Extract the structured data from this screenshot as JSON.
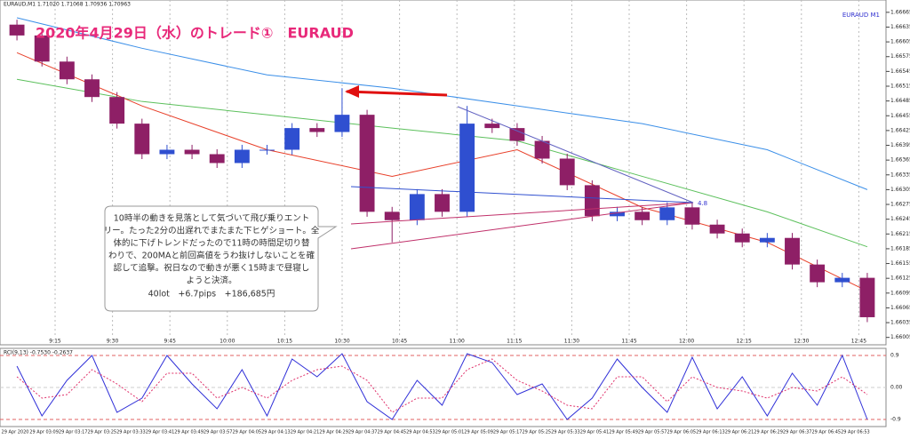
{
  "window": {
    "status": "EURAUD,M1  1.71020 1.71068 1.70936 1.70963",
    "symbol_label": "EURAUD M1"
  },
  "annotation": {
    "title": "2020年4月29日（水）のトレード①　EURAUD",
    "callout_lines": [
      "10時半の動きを見落として気づいて飛び乗りエント",
      "リー。たった2分の出遅れでまたまた下ヒゲショート。全",
      "体的に下げトレンドだったので11時の時間足切り替",
      "わりで、200MAと前回高値をうわ抜けしないことを確",
      "認して追撃。祝日なので動きが悪く15時まで昼寝し",
      "ようと決済。"
    ],
    "result": "40lot　+6.7pips　+186,685円",
    "marker": "4.8"
  },
  "chart_data": [
    {
      "type": "candlestick",
      "up_color": "#2f4fd0",
      "down_color": "#8e1f66",
      "open": [
        1.6664,
        1.66618,
        1.66565,
        1.66529,
        1.66493,
        1.66439,
        1.66377,
        1.66386,
        1.66377,
        1.66359,
        1.66386,
        1.66386,
        1.6643,
        1.66422,
        1.66457,
        1.6626,
        1.66243,
        1.66296,
        1.6626,
        1.66439,
        1.6643,
        1.66404,
        1.66368,
        1.66314,
        1.66251,
        1.6626,
        1.66243,
        1.66269,
        1.66234,
        1.66216,
        1.66198,
        1.66207,
        1.66153,
        1.66117,
        1.66126
      ],
      "high": [
        1.6665,
        1.66628,
        1.66575,
        1.66539,
        1.66503,
        1.66449,
        1.66396,
        1.66396,
        1.66387,
        1.66396,
        1.66396,
        1.6644,
        1.6644,
        1.66511,
        1.66467,
        1.6627,
        1.66306,
        1.66306,
        1.66475,
        1.66449,
        1.6644,
        1.66414,
        1.66378,
        1.66324,
        1.6627,
        1.6627,
        1.66279,
        1.66279,
        1.66244,
        1.66226,
        1.66217,
        1.66217,
        1.66163,
        1.66136,
        1.66136
      ],
      "low": [
        1.66608,
        1.66555,
        1.66519,
        1.66483,
        1.66429,
        1.66367,
        1.66367,
        1.66367,
        1.66349,
        1.66349,
        1.66376,
        1.66376,
        1.66412,
        1.66412,
        1.6625,
        1.66198,
        1.66233,
        1.6625,
        1.6625,
        1.6642,
        1.66394,
        1.66358,
        1.66304,
        1.66241,
        1.66241,
        1.66233,
        1.66233,
        1.66224,
        1.66206,
        1.66188,
        1.66188,
        1.66143,
        1.66107,
        1.66107,
        1.66036
      ],
      "close": [
        1.66618,
        1.66565,
        1.66529,
        1.66493,
        1.66439,
        1.66377,
        1.66386,
        1.66377,
        1.66359,
        1.66386,
        1.66386,
        1.6643,
        1.66422,
        1.66457,
        1.6626,
        1.66243,
        1.66296,
        1.6626,
        1.66439,
        1.6643,
        1.66404,
        1.66368,
        1.66314,
        1.66251,
        1.6626,
        1.66243,
        1.66269,
        1.66234,
        1.66216,
        1.66198,
        1.66207,
        1.66153,
        1.66117,
        1.66126,
        1.66046
      ],
      "lines": [
        {
          "color": "#3b8fe8",
          "x": [
            0,
            5,
            10,
            15,
            20,
            25,
            30,
            34
          ],
          "values": [
            1.66654,
            1.66592,
            1.66538,
            1.66511,
            1.66475,
            1.66439,
            1.66386,
            1.66305
          ]
        },
        {
          "color": "#5cc05c",
          "x": [
            0,
            5,
            10,
            15,
            20,
            25,
            30,
            34
          ],
          "values": [
            1.66529,
            1.66484,
            1.66457,
            1.6643,
            1.66404,
            1.66332,
            1.6626,
            1.66189
          ]
        },
        {
          "color": "#e8402a",
          "x": [
            0,
            5,
            10,
            15,
            20,
            25,
            30,
            34
          ],
          "values": [
            1.66583,
            1.66475,
            1.66386,
            1.66332,
            1.66386,
            1.66269,
            1.66198,
            1.66099
          ]
        }
      ],
      "ylim": [
        1.6599,
        1.6669
      ],
      "yticks": [
        1.66005,
        1.66035,
        1.66065,
        1.66095,
        1.66125,
        1.66155,
        1.66185,
        1.66215,
        1.66245,
        1.66275,
        1.66305,
        1.66335,
        1.66365,
        1.66395,
        1.66425,
        1.66455,
        1.66485,
        1.66515,
        1.66545,
        1.66575,
        1.66605,
        1.66635,
        1.66665
      ],
      "x_labels": [
        "9:15",
        "9:30",
        "9:45",
        "10:00",
        "10:15",
        "10:30",
        "10:45",
        "11:00",
        "11:15",
        "11:30",
        "11:45",
        "12:00",
        "12:15",
        "12:30",
        "12:45"
      ]
    },
    {
      "type": "line",
      "label": "RCI(9,13) -0.7530 -0.2637",
      "series": [
        {
          "color": "#3030d8",
          "dashed": false,
          "values": [
            0.6,
            -0.8,
            0.2,
            0.9,
            -0.7,
            -0.3,
            0.9,
            0.1,
            -0.6,
            0.5,
            -0.8,
            0.8,
            0.3,
            0.95,
            -0.4,
            -0.9,
            0.2,
            -0.5,
            0.95,
            0.7,
            -0.2,
            0.1,
            -0.9,
            -0.3,
            0.8,
            0.0,
            -0.7,
            0.85,
            -0.6,
            0.3,
            -0.8,
            0.4,
            -0.5,
            0.9,
            -0.9
          ]
        },
        {
          "color": "#e0306a",
          "dashed": true,
          "values": [
            0.3,
            -0.3,
            -0.2,
            0.5,
            0.1,
            -0.4,
            0.4,
            0.4,
            -0.3,
            0.0,
            -0.3,
            0.2,
            0.5,
            0.6,
            0.2,
            -0.7,
            -0.3,
            -0.3,
            0.5,
            0.8,
            0.2,
            -0.1,
            -0.5,
            -0.6,
            0.3,
            0.3,
            -0.4,
            0.3,
            0.0,
            -0.1,
            -0.3,
            0.0,
            -0.1,
            0.3,
            -0.2
          ]
        }
      ],
      "ylim": [
        -1,
        1
      ],
      "yticks": [
        0.9,
        {
          "value": 0,
          "label": "0.00"
        },
        -0.9
      ],
      "x_labels": [
        "29 Apr 2020",
        "29 Apr 03:09",
        "29 Apr 03:17",
        "29 Apr 03:25",
        "29 Apr 03:33",
        "29 Apr 03:41",
        "29 Apr 03:49",
        "29 Apr 03:57",
        "29 Apr 04:05",
        "29 Apr 04:13",
        "29 Apr 04:21",
        "29 Apr 04:29",
        "29 Apr 04:37",
        "29 Apr 04:45",
        "29 Apr 04:53",
        "29 Apr 05:01",
        "29 Apr 05:09",
        "29 Apr 05:17",
        "29 Apr 05:25",
        "29 Apr 05:33",
        "29 Apr 05:41",
        "29 Apr 05:49",
        "29 Apr 05:57",
        "29 Apr 06:05",
        "29 Apr 06:13",
        "29 Apr 06:21",
        "29 Apr 06:29",
        "29 Apr 06:37",
        "29 Apr 06:45",
        "29 Apr 06:53"
      ]
    }
  ]
}
